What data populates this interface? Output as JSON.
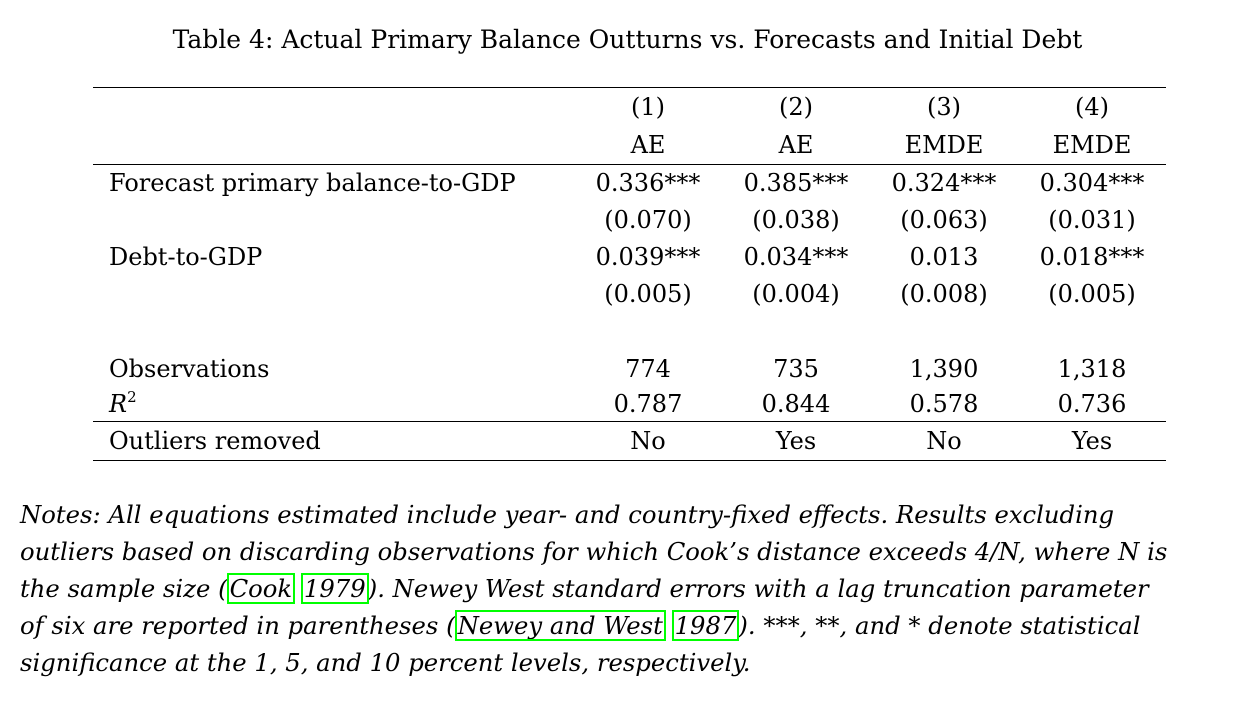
{
  "caption": "Table 4: Actual Primary Balance Outturns vs. Forecasts and Initial Debt",
  "columns": [
    {
      "number": "(1)",
      "group": "AE"
    },
    {
      "number": "(2)",
      "group": "AE"
    },
    {
      "number": "(3)",
      "group": "EMDE"
    },
    {
      "number": "(4)",
      "group": "EMDE"
    }
  ],
  "rows": {
    "forecast": {
      "label": "Forecast primary balance-to-GDP",
      "coef": [
        "0.336***",
        "0.385***",
        "0.324***",
        "0.304***"
      ],
      "se": [
        "(0.070)",
        "(0.038)",
        "(0.063)",
        "(0.031)"
      ]
    },
    "debt": {
      "label": "Debt-to-GDP",
      "coef": [
        "0.039***",
        "0.034***",
        "0.013",
        "0.018***"
      ],
      "se": [
        "(0.005)",
        "(0.004)",
        "(0.008)",
        "(0.005)"
      ]
    },
    "observations": {
      "label": "Observations",
      "values": [
        "774",
        "735",
        "1,390",
        "1,318"
      ]
    },
    "r2": {
      "label_base": "R",
      "label_sup": "2",
      "values": [
        "0.787",
        "0.844",
        "0.578",
        "0.736"
      ]
    },
    "outliers": {
      "label": "Outliers removed",
      "values": [
        "No",
        "Yes",
        "No",
        "Yes"
      ]
    }
  },
  "notes": {
    "line1": "Notes: All equations estimated include year- and country-fixed effects. Results excluding",
    "line2": "outliers based on discarding observations for which Cook’s distance exceeds 4/N, where N is",
    "line3_pre": "the sample size (",
    "cite1_author": "Cook",
    "cite1_year": "1979",
    "line3_post": "). Newey West standard errors with a lag truncation parameter",
    "line4_pre": "of six are reported in parentheses (",
    "cite2_author": "Newey and West",
    "cite2_year": "1987",
    "line4_post": "). ***, **, and * denote statistical",
    "line5": "significance at the 1, 5, and 10 percent levels, respectively."
  }
}
